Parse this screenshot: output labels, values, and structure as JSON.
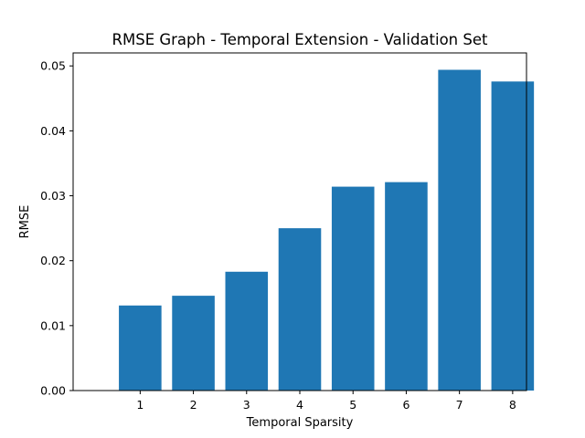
{
  "chart_data": {
    "type": "bar",
    "title": "RMSE Graph - Temporal Extension - Validation Set",
    "xlabel": "Temporal Sparsity",
    "ylabel": "RMSE",
    "categories": [
      "1",
      "2",
      "3",
      "4",
      "5",
      "6",
      "7",
      "8"
    ],
    "values": [
      0.0131,
      0.0146,
      0.0183,
      0.025,
      0.0314,
      0.0321,
      0.0494,
      0.0476
    ],
    "ylim": [
      0,
      0.052
    ],
    "yticks": [
      "0.00",
      "0.01",
      "0.02",
      "0.03",
      "0.04",
      "0.05"
    ],
    "bar_color": "#1f77b4",
    "grid": false,
    "legend": "none"
  }
}
